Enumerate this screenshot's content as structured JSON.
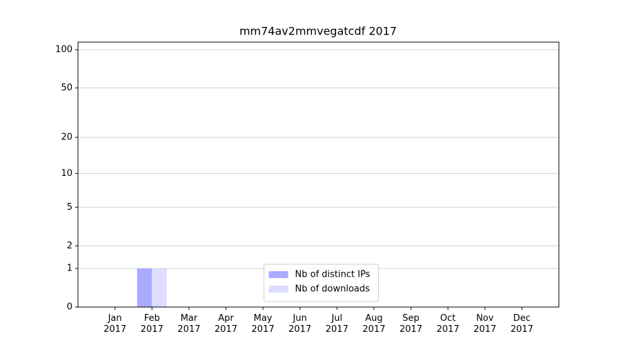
{
  "chart_data": {
    "type": "bar",
    "title": "mm74av2mmvegatcdf 2017",
    "categories": [
      "Jan 2017",
      "Feb 2017",
      "Mar 2017",
      "Apr 2017",
      "May 2017",
      "Jun 2017",
      "Jul 2017",
      "Aug 2017",
      "Sep 2017",
      "Oct 2017",
      "Nov 2017",
      "Dec 2017"
    ],
    "series": [
      {
        "name": "Nb of distinct IPs",
        "color": "#aaaaff",
        "values": [
          0,
          1,
          0,
          0,
          0,
          0,
          0,
          0,
          0,
          0,
          0,
          0
        ]
      },
      {
        "name": "Nb of downloads",
        "color": "#ddddff",
        "values": [
          0,
          1,
          0,
          0,
          0,
          0,
          0,
          0,
          0,
          0,
          0,
          0
        ]
      }
    ],
    "yscale": "symlog",
    "ylim": [
      0,
      115
    ],
    "yticks": [
      0,
      1,
      2,
      5,
      10,
      20,
      50,
      100
    ],
    "grid": true,
    "legend": "lower center"
  }
}
